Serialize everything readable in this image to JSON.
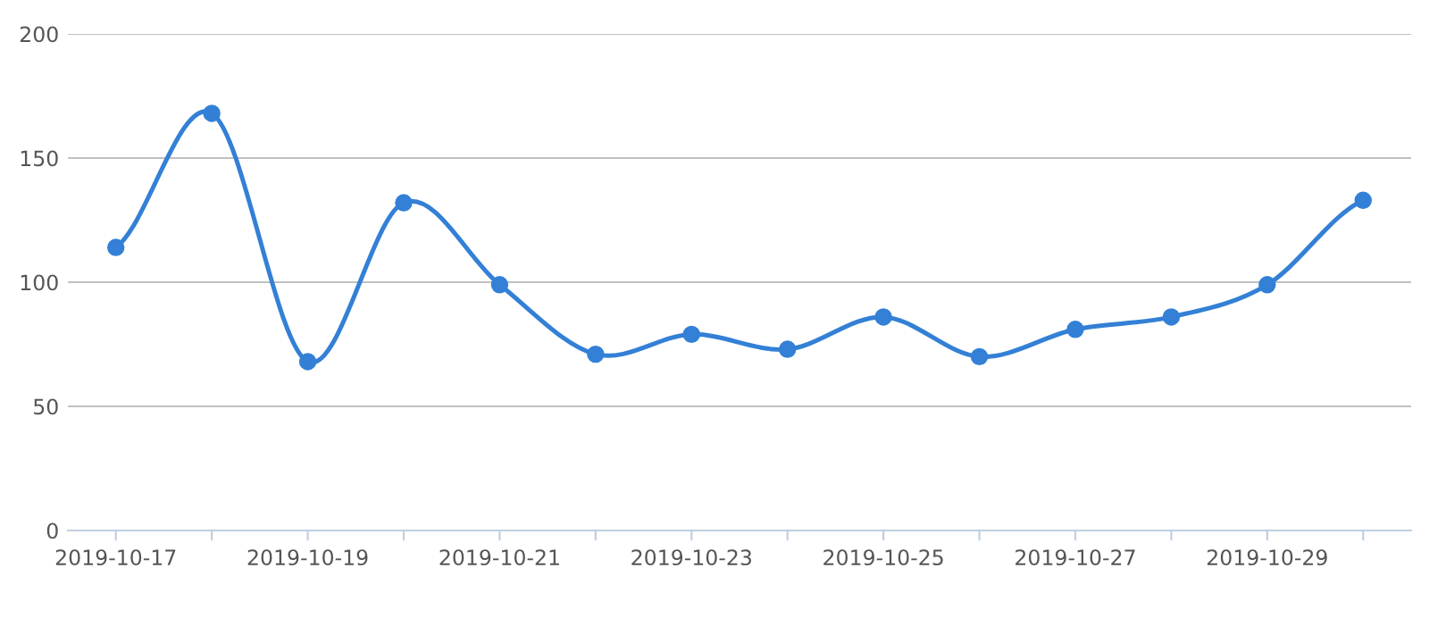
{
  "chart_data": {
    "type": "line",
    "categories": [
      "2019-10-17",
      null,
      "2019-10-19",
      null,
      "2019-10-21",
      null,
      "2019-10-23",
      null,
      "2019-10-25",
      null,
      "2019-10-27",
      null,
      "2019-10-29",
      null
    ],
    "series": [
      {
        "color": "#3380d6",
        "values": [
          114,
          168,
          68,
          132,
          99,
          71,
          79,
          73,
          86,
          70,
          81,
          86,
          99,
          133
        ]
      }
    ],
    "ylim": [
      0,
      200
    ],
    "yticks": [
      0,
      50,
      100,
      150,
      200
    ],
    "grid": "y",
    "marker": "circle",
    "line_style": "solid",
    "legend": false
  }
}
